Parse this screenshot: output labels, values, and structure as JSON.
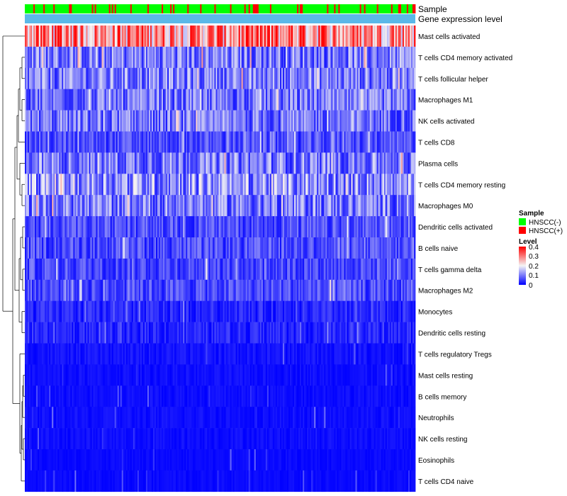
{
  "chart_data": {
    "type": "heatmap",
    "annotation_rows": [
      "Sample",
      "Gene expression level"
    ],
    "rows": [
      "Mast cells activated",
      "T cells CD4 memory activated",
      "T cells follicular helper",
      "Macrophages M1",
      "NK cells activated",
      "T cells CD8",
      "Plasma cells",
      "T cells CD4 memory resting",
      "Macrophages M0",
      "Dendritic cells activated",
      "B cells naive",
      "T cells gamma delta",
      "Macrophages M2",
      "Monocytes",
      "Dendritic cells resting",
      "T cells regulatory  Tregs",
      "Mast cells resting",
      "B cells memory",
      "Neutrophils",
      "NK cells resting",
      "Eosinophils",
      "T cells CD4 naive"
    ],
    "row_typical_levels": [
      0.28,
      0.1,
      0.1,
      0.09,
      0.09,
      0.06,
      0.1,
      0.12,
      0.1,
      0.06,
      0.06,
      0.06,
      0.06,
      0.04,
      0.04,
      0.02,
      0.015,
      0.015,
      0.015,
      0.015,
      0.01,
      0.01
    ],
    "value_range": [
      0,
      0.4
    ],
    "n_samples": 274,
    "sample_groups": [
      "HNSCC(-)",
      "HNSCC(+)"
    ],
    "sample_group_fraction": {
      "HNSCC(-)": 0.8,
      "HNSCC(+)": 0.2
    },
    "legend": {
      "sample_title": "Sample",
      "sample_items": [
        {
          "label": "HNSCC(-)",
          "color": "#00ff00"
        },
        {
          "label": "HNSCC(+)",
          "color": "#ff0000"
        }
      ],
      "level_title": "Level",
      "level_ticks": [
        "0.4",
        "0.3",
        "0.2",
        "0.1",
        "0"
      ],
      "colors": {
        "low": "#0000ff",
        "mid": "#f5f5f5",
        "high": "#ff0000"
      }
    },
    "expression_bar_color": "#5bb8e8"
  }
}
